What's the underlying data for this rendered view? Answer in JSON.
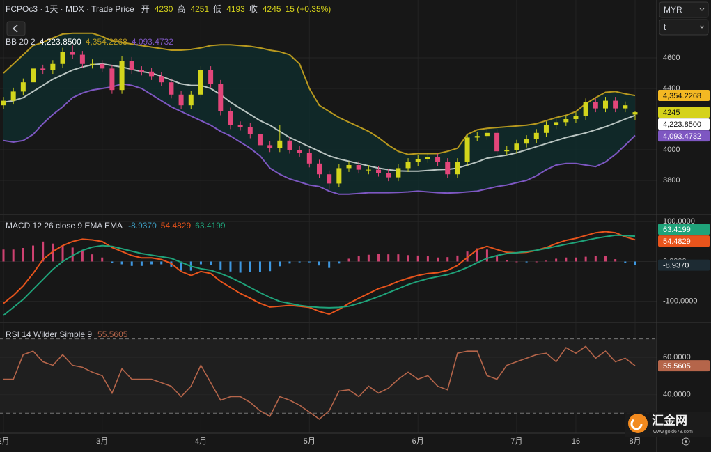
{
  "header": {
    "symbol": "FCPOc3 · 1天 · MDX · Trade Price",
    "open_label": "开=",
    "high_label": "高=",
    "low_label": "低=",
    "close_label": "收=",
    "change": "15 (+0.35%)"
  },
  "currency": "MYR",
  "unit": "t",
  "logo": {
    "name": "汇金网",
    "url": "www.gold678.com"
  },
  "chart_data": [
    {
      "type": "candlestick",
      "categories": [
        "2月",
        null,
        null,
        null,
        null,
        null,
        null,
        null,
        null,
        null,
        "3月",
        null,
        null,
        null,
        null,
        null,
        null,
        null,
        null,
        null,
        "4月",
        null,
        null,
        null,
        null,
        null,
        null,
        null,
        null,
        null,
        null,
        "5月",
        null,
        null,
        null,
        null,
        null,
        null,
        null,
        null,
        null,
        null,
        "6月",
        null,
        null,
        null,
        null,
        null,
        null,
        null,
        null,
        null,
        "7月",
        null,
        null,
        null,
        null,
        null,
        "16",
        null,
        null,
        null,
        null,
        null,
        "8月"
      ],
      "open": [
        4290,
        4320,
        4380,
        4440,
        4530,
        4520,
        4560,
        4640,
        4620,
        4560,
        4560,
        4530,
        4390,
        4580,
        4520,
        4510,
        4480,
        4440,
        4360,
        4290,
        4360,
        4520,
        4430,
        4250,
        4160,
        4150,
        4100,
        4030,
        4010,
        4060,
        4000,
        3980,
        3910,
        3840,
        3780,
        3880,
        3900,
        3870,
        3870,
        3850,
        3820,
        3880,
        3920,
        3940,
        3950,
        3920,
        3840,
        3920,
        4080,
        4090,
        4110,
        3990,
        4000,
        4040,
        4070,
        4110,
        4160,
        4180,
        4200,
        4220,
        4310,
        4270,
        4320,
        4270,
        4230
      ],
      "high": [
        4345,
        4405,
        4465,
        4555,
        4555,
        4585,
        4665,
        4680,
        4645,
        4590,
        4585,
        4555,
        4610,
        4605,
        4545,
        4535,
        4505,
        4465,
        4385,
        4385,
        4545,
        4545,
        4455,
        4275,
        4185,
        4175,
        4125,
        4055,
        4160,
        4085,
        4025,
        4005,
        3935,
        3865,
        3905,
        3925,
        3925,
        3900,
        3895,
        3875,
        3905,
        3945,
        3965,
        3975,
        3975,
        3945,
        3945,
        4105,
        4115,
        4135,
        4135,
        4025,
        4065,
        4095,
        4135,
        4185,
        4205,
        4225,
        4245,
        4335,
        4335,
        4345,
        4345,
        4315,
        4251
      ],
      "low": [
        4265,
        4295,
        4355,
        4415,
        4495,
        4495,
        4535,
        4595,
        4535,
        4530,
        4505,
        4365,
        4365,
        4495,
        4485,
        4455,
        4415,
        4335,
        4265,
        4265,
        4335,
        4405,
        4225,
        4135,
        4125,
        4075,
        4005,
        3985,
        3985,
        3975,
        3955,
        3885,
        3815,
        3740,
        3755,
        3855,
        3845,
        3840,
        3825,
        3795,
        3795,
        3855,
        3895,
        3915,
        3895,
        3815,
        3815,
        3895,
        4055,
        4065,
        3965,
        3965,
        3975,
        4015,
        4045,
        4085,
        4135,
        4155,
        4175,
        4195,
        4245,
        4245,
        4245,
        4245,
        4193
      ],
      "close": [
        4320,
        4380,
        4440,
        4530,
        4520,
        4560,
        4640,
        4620,
        4560,
        4560,
        4530,
        4390,
        4580,
        4520,
        4510,
        4480,
        4440,
        4360,
        4290,
        4360,
        4520,
        4430,
        4250,
        4160,
        4150,
        4100,
        4030,
        4010,
        4060,
        4000,
        3980,
        3910,
        3840,
        3780,
        3880,
        3900,
        3870,
        3870,
        3850,
        3820,
        3880,
        3920,
        3940,
        3950,
        3920,
        3840,
        3920,
        4080,
        4090,
        4110,
        3990,
        4000,
        4040,
        4070,
        4110,
        4160,
        4180,
        4200,
        4220,
        4310,
        4270,
        4320,
        4270,
        4290,
        4245
      ],
      "up_color": "#d2d51c",
      "down_color": "#e2467a",
      "close_tag_color": "#d5d21b",
      "ylim": [
        3582,
        4977
      ],
      "yticks": [
        3800,
        4000,
        4400,
        4600
      ],
      "grid": true,
      "legend_title": "BB 20 2",
      "band_fill": "#0f2b2b",
      "series": [
        {
          "color": "#b9c4c1",
          "tag_color": "#ffffff",
          "value_label": "4,223.8500",
          "values": [
            4310,
            4320,
            4340,
            4380,
            4420,
            4460,
            4490,
            4520,
            4540,
            4555,
            4560,
            4550,
            4540,
            4525,
            4510,
            4500,
            4480,
            4455,
            4430,
            4420,
            4420,
            4400,
            4360,
            4310,
            4270,
            4230,
            4190,
            4160,
            4120,
            4080,
            4050,
            4020,
            3990,
            3960,
            3940,
            3925,
            3910,
            3895,
            3880,
            3870,
            3862,
            3860,
            3860,
            3865,
            3870,
            3872,
            3880,
            3900,
            3920,
            3945,
            3955,
            3965,
            3980,
            4000,
            4020,
            4040,
            4060,
            4080,
            4095,
            4110,
            4130,
            4150,
            4175,
            4200,
            4223.85
          ]
        },
        {
          "color": "#b8991f",
          "tag_color": "#f3b823",
          "value_label": "4,354.2268",
          "values": [
            4500,
            4560,
            4620,
            4680,
            4700,
            4730,
            4755,
            4760,
            4760,
            4760,
            4740,
            4710,
            4700,
            4690,
            4680,
            4670,
            4660,
            4650,
            4650,
            4655,
            4665,
            4680,
            4685,
            4685,
            4680,
            4675,
            4665,
            4650,
            4640,
            4620,
            4560,
            4400,
            4290,
            4250,
            4210,
            4180,
            4150,
            4120,
            4080,
            4030,
            3990,
            3970,
            3975,
            3975,
            3975,
            3990,
            4010,
            4100,
            4130,
            4140,
            4145,
            4150,
            4155,
            4160,
            4170,
            4190,
            4210,
            4225,
            4250,
            4300,
            4340,
            4375,
            4380,
            4365,
            4354.2268
          ]
        },
        {
          "color": "#7e57c2",
          "tag_color": "#7e57c2",
          "value_label": "4,093.4732",
          "values": [
            4060,
            4050,
            4060,
            4100,
            4170,
            4230,
            4280,
            4340,
            4370,
            4390,
            4400,
            4410,
            4430,
            4420,
            4400,
            4360,
            4320,
            4280,
            4250,
            4220,
            4190,
            4160,
            4120,
            4090,
            4050,
            4010,
            3960,
            3880,
            3840,
            3810,
            3790,
            3770,
            3760,
            3730,
            3710,
            3710,
            3715,
            3720,
            3720,
            3720,
            3722,
            3725,
            3730,
            3725,
            3720,
            3718,
            3720,
            3725,
            3730,
            3745,
            3760,
            3770,
            3785,
            3800,
            3830,
            3870,
            3900,
            3910,
            3910,
            3900,
            3890,
            3920,
            3970,
            4030,
            4093.4732
          ]
        }
      ]
    },
    {
      "type": "combo",
      "legend_title": "MACD 12 26 close 9 EMA EMA",
      "ylim": [
        -151,
        116
      ],
      "yticks": [
        {
          "value": 100,
          "label": "100.0000"
        },
        {
          "value": 0,
          "label": "0.0000"
        },
        {
          "value": -100,
          "label": "-100.0000"
        }
      ],
      "histogram": {
        "positive_color": "#e2467a",
        "negative_color": "#42a5f5",
        "color": "#3d9dc2",
        "value_label": "-8.9370",
        "values": [
          30,
          30,
          34,
          40,
          50,
          45,
          40,
          35,
          28,
          18,
          10,
          -3,
          -7,
          -11,
          -11,
          -7,
          -7,
          -13,
          -23,
          -23,
          -7,
          -8,
          -20,
          -25,
          -28,
          -27,
          -27,
          -24,
          -12,
          -5,
          -2,
          -2,
          -10,
          -16,
          -5,
          7,
          13,
          17,
          20,
          18,
          18,
          16,
          15,
          13,
          10,
          11,
          15,
          25,
          33,
          30,
          15,
          3,
          0,
          -2,
          0,
          2,
          7,
          10,
          10,
          12,
          14,
          13,
          6,
          -3,
          -8.937
        ]
      },
      "series": [
        {
          "color": "#e8541c",
          "value_label": "54.4829",
          "values": [
            -105,
            -85,
            -61,
            -30,
            5,
            25,
            40,
            50,
            56,
            54,
            50,
            35,
            25,
            15,
            9,
            9,
            5,
            -5,
            -25,
            -35,
            -25,
            -30,
            -50,
            -65,
            -80,
            -92,
            -105,
            -114,
            -112,
            -110,
            -112,
            -115,
            -125,
            -132,
            -120,
            -105,
            -92,
            -80,
            -68,
            -60,
            -50,
            -42,
            -35,
            -30,
            -28,
            -22,
            -10,
            10,
            30,
            38,
            30,
            23,
            22,
            23,
            28,
            35,
            45,
            53,
            58,
            65,
            72,
            75,
            72,
            62,
            54.4829
          ]
        },
        {
          "color": "#1fa37a",
          "value_label": "63.4199",
          "values": [
            -135,
            -115,
            -95,
            -70,
            -45,
            -20,
            0,
            15,
            28,
            36,
            40,
            38,
            32,
            26,
            20,
            16,
            12,
            8,
            -2,
            -12,
            -18,
            -22,
            -30,
            -40,
            -52,
            -65,
            -78,
            -90,
            -100,
            -105,
            -110,
            -113,
            -115,
            -116,
            -115,
            -112,
            -105,
            -97,
            -88,
            -78,
            -68,
            -58,
            -50,
            -43,
            -38,
            -33,
            -25,
            -15,
            -3,
            8,
            15,
            20,
            22,
            25,
            28,
            33,
            38,
            43,
            48,
            53,
            58,
            62,
            66,
            65,
            63.4199
          ]
        }
      ]
    },
    {
      "type": "line",
      "legend_title": "RSI 14 Wilder Simple 9",
      "ylim": [
        19.2,
        78.5
      ],
      "yticks": [
        {
          "value": 60,
          "label": "60.0000"
        },
        {
          "value": 40,
          "label": "40.0000"
        }
      ],
      "bands": [
        30,
        70
      ],
      "band_fill": "#1f1f1f",
      "series": [
        {
          "color": "#b5654a",
          "value_label": "55.5605",
          "values": [
            48.3,
            48.3,
            61.5,
            63.4,
            57.7,
            55.8,
            61.5,
            55.8,
            54.7,
            52.1,
            50.2,
            40.8,
            54,
            48.3,
            48.3,
            48.3,
            46.4,
            44.5,
            38.9,
            44.5,
            55.8,
            46.4,
            37,
            38.9,
            38.9,
            35.8,
            31.3,
            28.3,
            38.9,
            37,
            34.3,
            30.6,
            26.8,
            31.3,
            41.9,
            42.6,
            38.9,
            44.5,
            40.8,
            43.4,
            48.3,
            52.1,
            48.3,
            50.2,
            44.5,
            42.6,
            62.3,
            63.4,
            63.4,
            50.2,
            48.3,
            55.8,
            57.7,
            59.6,
            61.5,
            62.3,
            57.7,
            65.3,
            62.3,
            66,
            59.6,
            63.4,
            57.7,
            59.6,
            55.5605
          ]
        }
      ]
    }
  ]
}
